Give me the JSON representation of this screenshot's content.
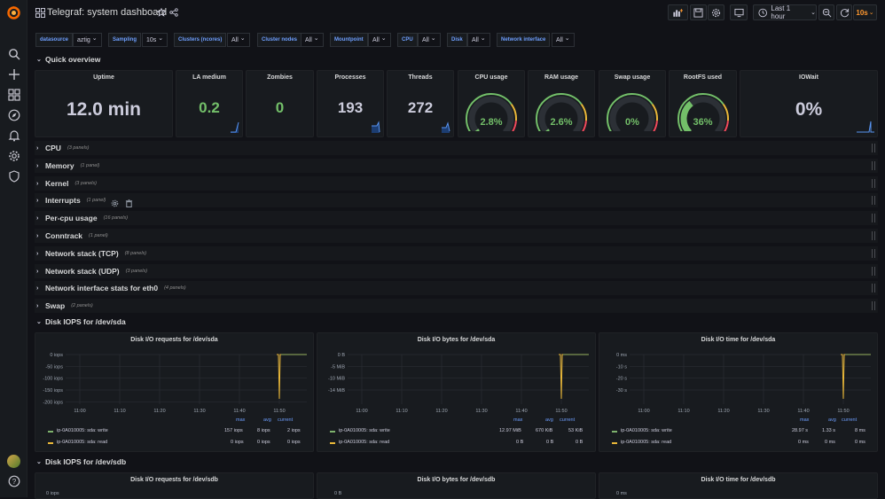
{
  "topbar": {
    "title": "Telegraf: system dashboard",
    "time_range": "Last 1 hour",
    "refresh": "10s"
  },
  "variables": [
    {
      "label": "datasource",
      "value": "aztig"
    },
    {
      "label": "Sampling",
      "value": "10s"
    },
    {
      "label": "Clusters (ncores)",
      "value": "All"
    },
    {
      "label": "Cluster nodes",
      "value": "All"
    },
    {
      "label": "Mountpoint",
      "value": "All"
    },
    {
      "label": "CPU",
      "value": "All"
    },
    {
      "label": "Disk",
      "value": "All"
    },
    {
      "label": "Network interface",
      "value": "All"
    }
  ],
  "quick_overview": {
    "title": "Quick overview",
    "stats": [
      {
        "title": "Uptime",
        "value": "12.0 min"
      },
      {
        "title": "LA medium",
        "value": "0.2"
      },
      {
        "title": "Zombies",
        "value": "0"
      },
      {
        "title": "Processes",
        "value": "193"
      },
      {
        "title": "Threads",
        "value": "272"
      },
      {
        "title": "CPU usage",
        "value": "2.8%",
        "fraction": 0.028
      },
      {
        "title": "RAM usage",
        "value": "2.6%",
        "fraction": 0.026
      },
      {
        "title": "Swap usage",
        "value": "0%",
        "fraction": 0
      },
      {
        "title": "RootFS used",
        "value": "36%",
        "fraction": 0.36
      },
      {
        "title": "IOWait",
        "value": "0%"
      }
    ]
  },
  "rows": [
    {
      "title": "CPU",
      "count": "(3 panels)"
    },
    {
      "title": "Memory",
      "count": "(1 panel)"
    },
    {
      "title": "Kernel",
      "count": "(3 panels)"
    },
    {
      "title": "Interrupts",
      "count": "(1 panel)"
    },
    {
      "title": "Per-cpu usage",
      "count": "(16 panels)"
    },
    {
      "title": "Conntrack",
      "count": "(1 panel)"
    },
    {
      "title": "Network stack (TCP)",
      "count": "(8 panels)"
    },
    {
      "title": "Network stack (UDP)",
      "count": "(3 panels)"
    },
    {
      "title": "Network interface stats for eth0",
      "count": "(4 panels)"
    },
    {
      "title": "Swap",
      "count": "(2 panels)"
    }
  ],
  "sda": {
    "title": "Disk IOPS for /dev/sda",
    "xticks": [
      "11:00",
      "11:10",
      "11:20",
      "11:30",
      "11:40",
      "11:50"
    ],
    "legend_headers": [
      "max",
      "avg",
      "current"
    ],
    "panels": [
      {
        "title": "Disk I/O requests for /dev/sda",
        "yticks": [
          "0 iops",
          "-50 iops",
          "-100 iops",
          "-150 iops",
          "-200 iops"
        ],
        "series": [
          {
            "name": "ip-0A010005: sda: write",
            "max": "157 iops",
            "avg": "8 iops",
            "current": "2 iops"
          },
          {
            "name": "ip-0A010005: sda: read",
            "max": "0 iops",
            "avg": "0 iops",
            "current": "0 iops"
          }
        ]
      },
      {
        "title": "Disk I/O bytes for /dev/sda",
        "yticks": [
          "0 B",
          "-5 MiB",
          "-10 MiB",
          "-14 MiB"
        ],
        "series": [
          {
            "name": "ip-0A010005: sda: write",
            "max": "12.97 MiB",
            "avg": "670 KiB",
            "current": "53 KiB"
          },
          {
            "name": "ip-0A010005: sda: read",
            "max": "0 B",
            "avg": "0 B",
            "current": "0 B"
          }
        ]
      },
      {
        "title": "Disk I/O time for /dev/sda",
        "yticks": [
          "0 ms",
          "-10 s",
          "-20 s",
          "-30 s"
        ],
        "series": [
          {
            "name": "ip-0A010005: sda: write",
            "max": "28.97 s",
            "avg": "1.33 s",
            "current": "8 ms"
          },
          {
            "name": "ip-0A010005: sda: read",
            "max": "0 ms",
            "avg": "0 ms",
            "current": "0 ms"
          }
        ]
      }
    ]
  },
  "sdb": {
    "title": "Disk IOPS for /dev/sdb",
    "panels": [
      {
        "title": "Disk I/O requests for /dev/sdb",
        "ytick": "0 iops"
      },
      {
        "title": "Disk I/O bytes for /dev/sdb",
        "ytick": "0 B"
      },
      {
        "title": "Disk I/O time for /dev/sdb",
        "ytick": "0 ms"
      }
    ]
  },
  "colors": {
    "green": "#73bf69",
    "yellow": "#eab839",
    "orange": "#ff9830",
    "blue": "#6e9fff"
  }
}
